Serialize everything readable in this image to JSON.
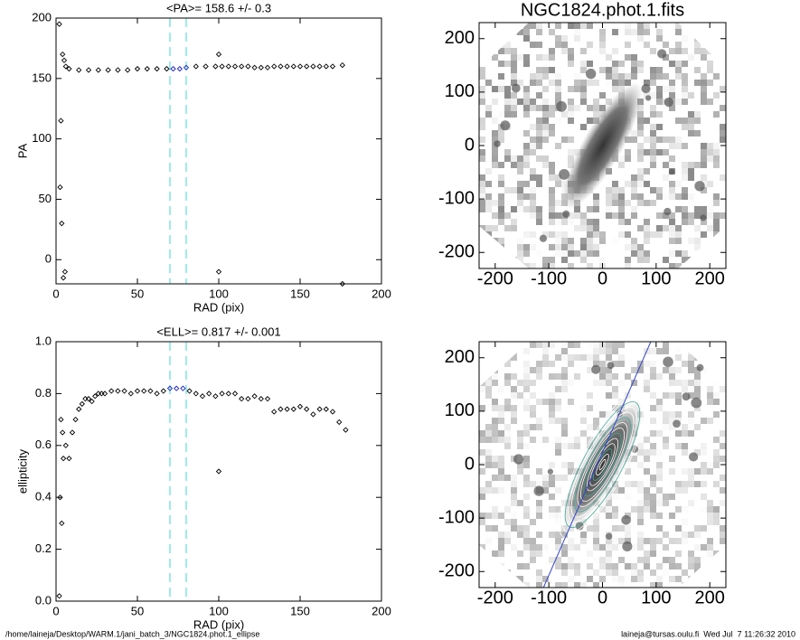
{
  "chart_data": [
    {
      "type": "scatter",
      "title": "<PA>= 158.6 +/-   0.3",
      "x_label": "RAD (pix)",
      "y_label": "PA",
      "x": [
        2,
        2.5,
        3,
        3.5,
        4,
        4.5,
        5,
        5.5,
        6,
        8,
        14,
        20,
        26,
        32,
        38,
        44,
        50,
        56,
        62,
        68,
        72,
        76,
        80,
        86,
        92,
        98,
        100,
        100,
        102,
        106,
        110,
        114,
        118,
        122,
        126,
        130,
        134,
        138,
        142,
        146,
        150,
        154,
        158,
        162,
        166,
        170,
        176,
        176
      ],
      "values": [
        195,
        60,
        115,
        30,
        170,
        -15,
        165,
        -10,
        160,
        158,
        157,
        157,
        157,
        157,
        157,
        157,
        158,
        158,
        158,
        158,
        158,
        158,
        159,
        160,
        160,
        160,
        170,
        -10,
        160,
        160,
        160,
        160,
        160,
        159,
        159,
        159,
        160,
        160,
        160,
        160,
        160,
        160,
        160,
        160,
        160,
        160,
        161,
        -20
      ],
      "xlim": [
        0,
        200
      ],
      "ylim": [
        -20,
        200
      ],
      "xticks": [
        0,
        50,
        100,
        150,
        200
      ],
      "yticks": [
        0,
        50,
        100,
        150,
        200
      ],
      "vlines": [
        70,
        80
      ],
      "vline_color": "#7fe6e6",
      "color": "#000000",
      "highlight_color": "#2020c0"
    },
    {
      "type": "scatter",
      "title": "<ELL>= 0.817 +/-  0.001",
      "x_label": "RAD (pix)",
      "y_label": "ellipticity",
      "x": [
        2,
        2.5,
        3,
        3.5,
        4,
        4.5,
        6,
        8,
        10,
        12,
        14,
        16,
        18,
        20,
        22,
        24,
        26,
        28,
        30,
        34,
        38,
        42,
        46,
        50,
        54,
        58,
        62,
        66,
        70,
        74,
        78,
        82,
        86,
        90,
        94,
        98,
        100,
        102,
        106,
        110,
        114,
        118,
        122,
        126,
        130,
        134,
        138,
        142,
        146,
        150,
        154,
        158,
        162,
        166,
        170,
        174,
        178
      ],
      "values": [
        0.02,
        0.4,
        0.7,
        0.3,
        0.65,
        0.55,
        0.6,
        0.55,
        0.65,
        0.7,
        0.74,
        0.76,
        0.78,
        0.78,
        0.77,
        0.79,
        0.8,
        0.8,
        0.8,
        0.81,
        0.81,
        0.81,
        0.8,
        0.81,
        0.81,
        0.81,
        0.8,
        0.81,
        0.82,
        0.82,
        0.82,
        0.81,
        0.8,
        0.79,
        0.8,
        0.79,
        0.5,
        0.8,
        0.8,
        0.8,
        0.78,
        0.78,
        0.79,
        0.78,
        0.78,
        0.73,
        0.74,
        0.74,
        0.74,
        0.75,
        0.74,
        0.72,
        0.74,
        0.74,
        0.73,
        0.69,
        0.66
      ],
      "xlim": [
        0,
        200
      ],
      "ylim": [
        0,
        1
      ],
      "xticks": [
        0,
        50,
        100,
        150,
        200
      ],
      "yticks": [
        {
          "value": 0,
          "label": "0.0"
        },
        {
          "value": 0.2,
          "label": "0.2"
        },
        {
          "value": 0.4,
          "label": "0.4"
        },
        {
          "value": 0.6,
          "label": "0.6"
        },
        {
          "value": 0.8,
          "label": "0.8"
        },
        {
          "value": 1,
          "label": "1.0"
        }
      ],
      "vlines": [
        70,
        80
      ],
      "vline_color": "#7fe6e6",
      "color": "#000000",
      "highlight_color": "#2020c0"
    },
    {
      "type": "image",
      "title": "NGC1824.phot.1.fits",
      "xlim": [
        -230,
        230
      ],
      "ylim": [
        -230,
        230
      ],
      "xticks": [
        -200,
        -100,
        0,
        100,
        200
      ],
      "yticks": [
        -200,
        -100,
        0,
        100,
        200
      ]
    },
    {
      "type": "image",
      "xlim": [
        -230,
        230
      ],
      "ylim": [
        -230,
        230
      ],
      "xticks": [
        -200,
        -100,
        0,
        100,
        200
      ],
      "yticks": [
        -200,
        -100,
        0,
        100,
        200
      ]
    }
  ],
  "footer": {
    "left": "/home/laineja/Desktop/WARM.1/jani_batch_3/NGC1824.phot.1_ellipse",
    "right": "laineja@tursas.oulu.fi  Wed Jul  7 11:26:32 2010"
  }
}
